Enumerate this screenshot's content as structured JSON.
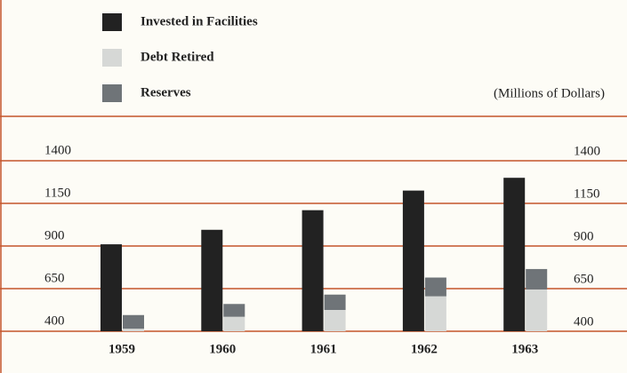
{
  "chart_data": {
    "type": "bar",
    "annotation": "(Millions of Dollars)",
    "categories": [
      "1959",
      "1960",
      "1961",
      "1962",
      "1963"
    ],
    "series": [
      {
        "name": "Invested in Facilities",
        "color": "#222222",
        "values": [
          910,
          995,
          1110,
          1225,
          1300
        ]
      },
      {
        "name": "Debt Retired",
        "color": "#d6d8d6",
        "values": [
          415,
          485,
          525,
          605,
          645
        ]
      },
      {
        "name": "Reserves",
        "color": "#6f7478",
        "values": [
          80,
          75,
          90,
          110,
          120
        ]
      }
    ],
    "ylim": [
      400,
      1400
    ],
    "yticks": [
      400,
      650,
      900,
      1150,
      1400
    ],
    "grid": true
  }
}
